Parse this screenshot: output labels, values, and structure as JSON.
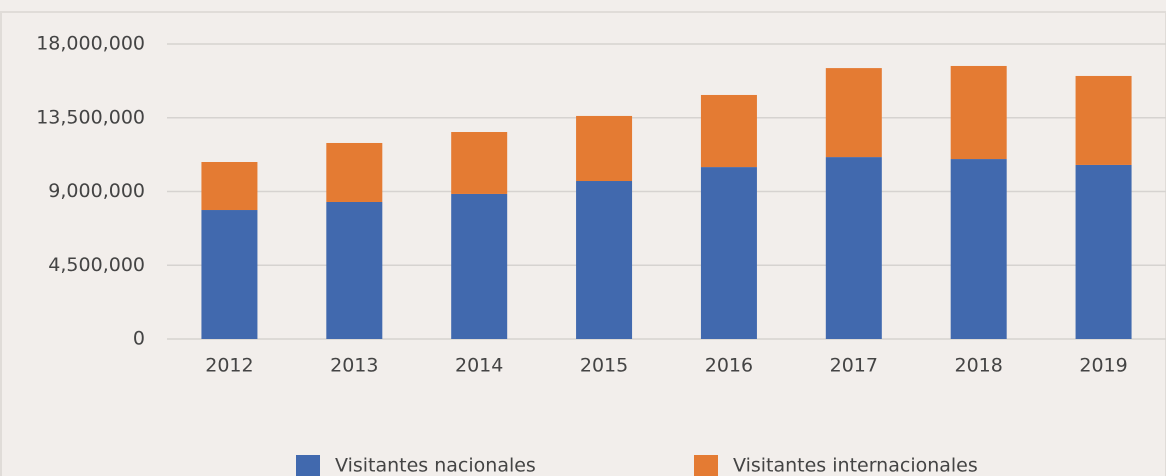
{
  "chart_data": {
    "type": "stacked_bar",
    "categories": [
      "2012",
      "2013",
      "2014",
      "2015",
      "2016",
      "2017",
      "2018",
      "2019"
    ],
    "series": [
      {
        "name": "Visitantes nacionales",
        "color": "#4169ae",
        "values": [
          7870000,
          8360000,
          8850000,
          9640000,
          10490000,
          11100000,
          10980000,
          10620000
        ]
      },
      {
        "name": "Visitantes internacionales",
        "color": "#e47b33",
        "values": [
          2930000,
          3600000,
          3780000,
          3970000,
          4400000,
          5430000,
          5680000,
          5430000
        ]
      }
    ],
    "ylim": [
      0,
      18000000
    ],
    "yticks": [
      0,
      {
        "value": 4500000,
        "label": "4,500,000"
      },
      {
        "value": 9000000,
        "label": "9,000,000"
      },
      {
        "value": 13500000,
        "label": "13,500,000"
      },
      {
        "value": 18000000,
        "label": "18,000,000"
      }
    ],
    "grid": true,
    "legend": "bottom"
  }
}
